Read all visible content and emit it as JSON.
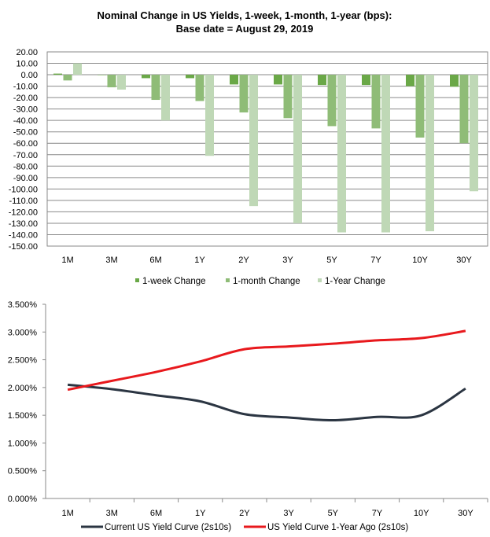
{
  "chart_data": [
    {
      "type": "bar",
      "title": [
        "Nominal Change in US Yields, 1-week, 1-month, 1-year (bps):",
        "Base date = August 29, 2019"
      ],
      "categories": [
        "1M",
        "3M",
        "6M",
        "1Y",
        "2Y",
        "3Y",
        "5Y",
        "7Y",
        "10Y",
        "30Y"
      ],
      "ylim": [
        -150,
        20
      ],
      "yticks": [
        "20.00",
        "10.00",
        "0.00",
        "-10.00",
        "-20.00",
        "-30.00",
        "-40.00",
        "-50.00",
        "-60.00",
        "-70.00",
        "-80.00",
        "-90.00",
        "-100.00",
        "-110.00",
        "-120.00",
        "-130.00",
        "-140.00",
        "-150.00"
      ],
      "legend_position": "bottom",
      "grid": true,
      "series": [
        {
          "name": "1-week Change",
          "color": "#6aa847",
          "values": [
            1,
            0,
            -3,
            -3,
            -8.5,
            -8.5,
            -9,
            -9,
            -10,
            -10.5
          ]
        },
        {
          "name": "1-month Change",
          "color": "#8fbc77",
          "values": [
            -5,
            -11,
            -22,
            -23,
            -33,
            -38,
            -45,
            -47,
            -55,
            -60
          ]
        },
        {
          "name": "1-Year Change",
          "color": "#bfd8b6",
          "values": [
            10,
            -13,
            -40,
            -71,
            -115,
            -130,
            -138,
            -138,
            -137,
            -102
          ]
        }
      ]
    },
    {
      "type": "line",
      "categories": [
        "1M",
        "3M",
        "6M",
        "1Y",
        "2Y",
        "3Y",
        "5Y",
        "7Y",
        "10Y",
        "30Y"
      ],
      "ylim": [
        0,
        3.5
      ],
      "yticks": [
        "0.000%",
        "0.500%",
        "1.000%",
        "1.500%",
        "2.000%",
        "2.500%",
        "3.000%",
        "3.500%"
      ],
      "legend_position": "bottom",
      "grid": false,
      "series": [
        {
          "name": "Current US Yield Curve (2s10s)",
          "color": "#2b3542",
          "values": [
            2.05,
            1.97,
            1.86,
            1.75,
            1.52,
            1.46,
            1.41,
            1.47,
            1.5,
            1.98
          ]
        },
        {
          "name": "US Yield Curve 1-Year Ago (2s10s)",
          "color": "#e8191d",
          "values": [
            1.96,
            2.12,
            2.28,
            2.47,
            2.69,
            2.74,
            2.79,
            2.85,
            2.89,
            3.02
          ]
        }
      ]
    }
  ]
}
